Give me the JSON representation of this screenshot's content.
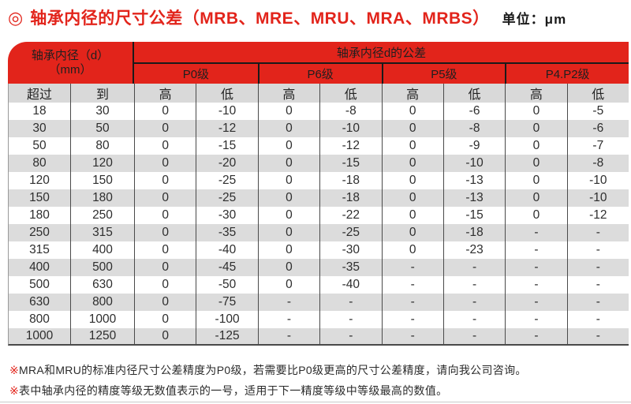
{
  "title": {
    "bullet": "◎",
    "text": "轴承内径的尺寸公差（MRB、MRE、MRU、MRA、MRBS）",
    "unit": "单位：μm"
  },
  "table": {
    "header": {
      "diameter_line1": "轴承内径（d）",
      "diameter_line2": "（mm）",
      "tolerance_title": "轴承内径d的公差",
      "grades": [
        "P0级",
        "P6级",
        "P5级",
        "P4.P2级"
      ],
      "sub": [
        "超过",
        "到",
        "高",
        "低",
        "高",
        "低",
        "高",
        "低",
        "高",
        "低"
      ]
    },
    "rows": [
      [
        "18",
        "30",
        "0",
        "-10",
        "0",
        "-8",
        "0",
        "-6",
        "0",
        "-5"
      ],
      [
        "30",
        "50",
        "0",
        "-12",
        "0",
        "-10",
        "0",
        "-8",
        "0",
        "-6"
      ],
      [
        "50",
        "80",
        "0",
        "-15",
        "0",
        "-12",
        "0",
        "-9",
        "0",
        "-7"
      ],
      [
        "80",
        "120",
        "0",
        "-20",
        "0",
        "-15",
        "0",
        "-10",
        "0",
        "-8"
      ],
      [
        "120",
        "150",
        "0",
        "-25",
        "0",
        "-18",
        "0",
        "-13",
        "0",
        "-10"
      ],
      [
        "150",
        "180",
        "0",
        "-25",
        "0",
        "-18",
        "0",
        "-13",
        "0",
        "-10"
      ],
      [
        "180",
        "250",
        "0",
        "-30",
        "0",
        "-22",
        "0",
        "-15",
        "0",
        "-12"
      ],
      [
        "250",
        "315",
        "0",
        "-35",
        "0",
        "-25",
        "0",
        "-18",
        "-",
        "-"
      ],
      [
        "315",
        "400",
        "0",
        "-40",
        "0",
        "-30",
        "0",
        "-23",
        "-",
        "-"
      ],
      [
        "400",
        "500",
        "0",
        "-45",
        "0",
        "-35",
        "-",
        "-",
        "-",
        "-"
      ],
      [
        "500",
        "630",
        "0",
        "-50",
        "0",
        "-40",
        "-",
        "-",
        "-",
        "-"
      ],
      [
        "630",
        "800",
        "0",
        "-75",
        "-",
        "-",
        "-",
        "-",
        "-",
        "-"
      ],
      [
        "800",
        "1000",
        "0",
        "-100",
        "-",
        "-",
        "-",
        "-",
        "-",
        "-"
      ],
      [
        "1000",
        "1250",
        "0",
        "-125",
        "-",
        "-",
        "-",
        "-",
        "-",
        "-"
      ]
    ]
  },
  "notes": [
    {
      "marker": "※",
      "text": "MRA和MRU的标准内径尺寸公差精度为P0级，若需要比P0级更高的尺寸公差精度，请向我公司咨询。"
    },
    {
      "marker": "※",
      "text": "表中轴承内径的精度等级无数值表示的一号，适用于下一精度等级中等级最高的数值。"
    }
  ],
  "colors": {
    "accent_red": "#e2241b",
    "header_gray": "#d9d9d9",
    "row_gray": "#dcdcdc",
    "text_dark": "#2e2e2e"
  }
}
